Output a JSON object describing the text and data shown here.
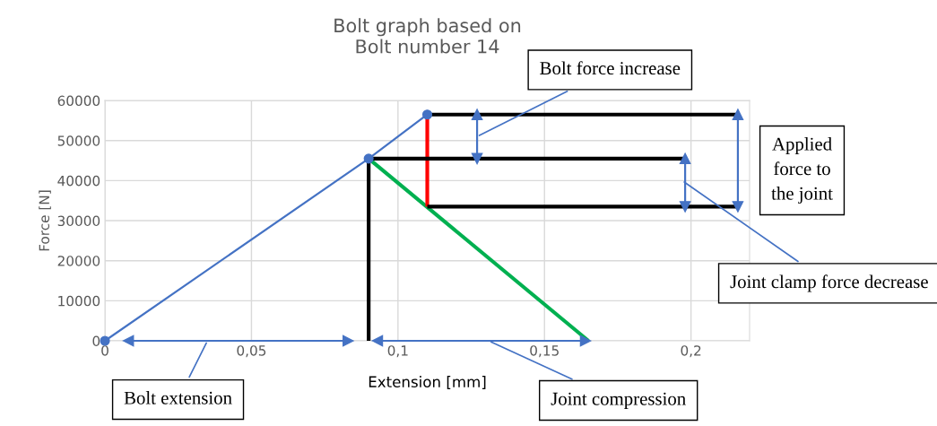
{
  "chart_data": {
    "type": "line",
    "title": "Bolt graph based on\nBolt number 14",
    "xlabel": "Extension [mm]",
    "ylabel": "Force [N]",
    "xlim": [
      0,
      0.22
    ],
    "ylim": [
      0,
      60000
    ],
    "xticks": [
      0,
      {
        "value": 0.05,
        "label": "0,05"
      },
      {
        "value": 0.1,
        "label": "0,1"
      },
      {
        "value": 0.15,
        "label": "0,15"
      },
      {
        "value": 0.2,
        "label": "0,2"
      }
    ],
    "yticks": [
      0,
      10000,
      20000,
      30000,
      40000,
      50000,
      60000
    ],
    "grid": true,
    "series": [
      {
        "color": "#4472c4",
        "x": [
          0,
          0.09,
          0.11
        ],
        "values": [
          0,
          45500,
          56500
        ],
        "marker": "circle"
      },
      {
        "color": "#00b050",
        "x": [
          0.09,
          0.165
        ],
        "values": [
          45500,
          0
        ]
      },
      {
        "color": "#ff0000",
        "x": [
          0.11,
          0.11
        ],
        "values": [
          33500,
          56500
        ]
      },
      {
        "color": "#000000",
        "x": [
          0.09,
          0.09
        ],
        "values": [
          0,
          45500
        ]
      },
      {
        "color": "#000000",
        "x": [
          0.09,
          0.198
        ],
        "values": [
          45500,
          45500
        ]
      },
      {
        "color": "#000000",
        "x": [
          0.11,
          0.216
        ],
        "values": [
          56500,
          56500
        ]
      },
      {
        "color": "#000000",
        "x": [
          0.11,
          0.216
        ],
        "values": [
          33500,
          33500
        ]
      },
      {
        "color": "#4472c4",
        "x": [
          0.008,
          0.083
        ],
        "values": [
          0,
          0
        ],
        "marker": "triangle"
      },
      {
        "color": "#4472c4",
        "x": [
          0.093,
          0.164
        ],
        "values": [
          0,
          0
        ],
        "marker": "triangle"
      },
      {
        "color": "#4472c4",
        "x": [
          0.127,
          0.127
        ],
        "values": [
          56500,
          45500
        ],
        "marker": "triangle"
      },
      {
        "color": "#4472c4",
        "x": [
          0.198,
          0.198
        ],
        "values": [
          45500,
          33500
        ],
        "marker": "triangle"
      },
      {
        "color": "#4472c4",
        "x": [
          0.216,
          0.216
        ],
        "values": [
          56500,
          33500
        ],
        "marker": "triangle"
      }
    ],
    "annotations": [
      {
        "text": "Bolt force increase",
        "x": 0.127,
        "y": 51000
      },
      "Applied\nforce to\nthe joint",
      {
        "text": "Joint clamp force decrease",
        "x": 0.197,
        "y": 40000
      },
      {
        "text": "Bolt extension",
        "x": 0.035,
        "y": 0
      },
      {
        "text": "Joint compression",
        "x": 0.131,
        "y": 0
      }
    ]
  }
}
